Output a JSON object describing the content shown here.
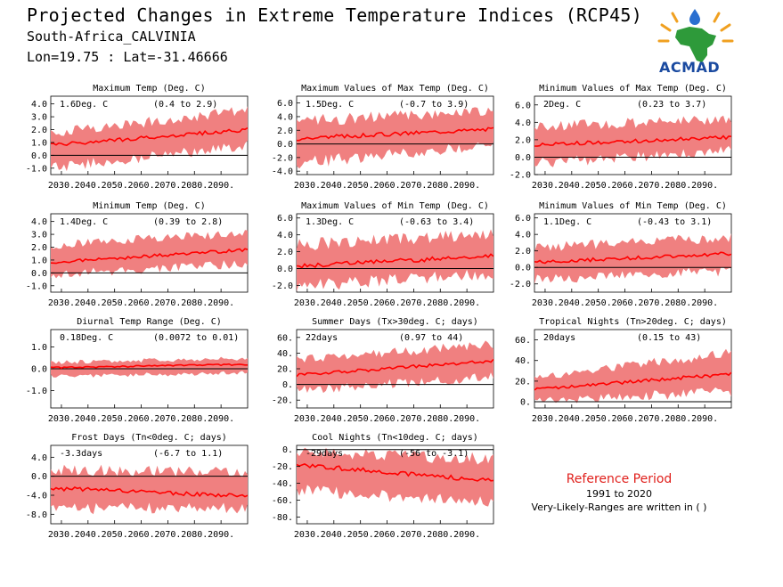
{
  "header": {
    "title": "Projected Changes in Extreme Temperature Indices (RCP45)",
    "location": "South-Africa_CALVINIA",
    "coords": "Lon=19.75 : Lat=-31.46666"
  },
  "logo": {
    "text": "ACMAD"
  },
  "legend": {
    "title": "Reference Period",
    "years": "1991 to 2020",
    "note": "Very-Likely-Ranges are written in ( )"
  },
  "colors": {
    "band": "#f08080",
    "line": "#ff0000",
    "zero": "#000000",
    "title_red": "#e0201c"
  },
  "chart_data": [
    {
      "type": "area",
      "title": "Maximum Temp (Deg. C)",
      "mean_text": "1.6Deg. C",
      "range_text": "(0.4 to 2.9)",
      "x_ticks": [
        "2030.",
        "2040.",
        "2050.",
        "2060.",
        "2070.",
        "2080.",
        "2090."
      ],
      "y_ticks": [
        "4.0",
        "3.0",
        "2.0",
        "1.0",
        "0.0",
        "-1.0"
      ],
      "ylim": [
        -1.5,
        4.6
      ],
      "series": [
        {
          "start": 0.8,
          "end": 2.0,
          "low_start": -0.8,
          "low_end": 0.9,
          "high_start": 1.6,
          "high_end": 3.3
        }
      ]
    },
    {
      "type": "area",
      "title": "Maximum Values of Max Temp (Deg. C)",
      "mean_text": "1.5Deg. C",
      "range_text": "(-0.7 to 3.9)",
      "x_ticks": [
        "2030.",
        "2040.",
        "2050.",
        "2060.",
        "2070.",
        "2080.",
        "2090."
      ],
      "y_ticks": [
        "6.0",
        "4.0",
        "2.0",
        "0.0",
        "-2.0",
        "-4.0"
      ],
      "ylim": [
        -4.5,
        7.0
      ],
      "series": [
        {
          "start": 0.8,
          "end": 2.2,
          "low_start": -2.5,
          "low_end": 0.2,
          "high_start": 3.0,
          "high_end": 4.5
        }
      ]
    },
    {
      "type": "area",
      "title": "Minimum Values of Max Temp (Deg. C)",
      "mean_text": "2Deg. C",
      "range_text": "(0.23 to 3.7)",
      "x_ticks": [
        "2030.",
        "2040.",
        "2050.",
        "2060.",
        "2070.",
        "2080.",
        "2090."
      ],
      "y_ticks": [
        "6.0",
        "4.0",
        "2.0",
        "0.0",
        "-2.0"
      ],
      "ylim": [
        -2.0,
        7.0
      ],
      "series": [
        {
          "start": 1.4,
          "end": 2.3,
          "low_start": -0.5,
          "low_end": 1.0,
          "high_start": 3.2,
          "high_end": 4.2
        }
      ]
    },
    {
      "type": "area",
      "title": "Minimum Temp (Deg. C)",
      "mean_text": "1.4Deg. C",
      "range_text": "(0.39 to 2.8)",
      "x_ticks": [
        "2030.",
        "2040.",
        "2050.",
        "2060.",
        "2070.",
        "2080.",
        "2090."
      ],
      "y_ticks": [
        "4.0",
        "3.0",
        "2.0",
        "1.0",
        "0.0",
        "-1.0"
      ],
      "ylim": [
        -1.5,
        4.6
      ],
      "series": [
        {
          "start": 0.8,
          "end": 1.8,
          "low_start": 0.0,
          "low_end": 0.9,
          "high_start": 2.0,
          "high_end": 3.0
        }
      ]
    },
    {
      "type": "area",
      "title": "Maximum Values of Min Temp (Deg. C)",
      "mean_text": "1.3Deg. C",
      "range_text": "(-0.63 to 3.4)",
      "x_ticks": [
        "2030.",
        "2040.",
        "2050.",
        "2060.",
        "2070.",
        "2080.",
        "2090."
      ],
      "y_ticks": [
        "6.0",
        "4.0",
        "2.0",
        "0.0",
        "-2.0"
      ],
      "ylim": [
        -2.8,
        6.5
      ],
      "series": [
        {
          "start": 0.3,
          "end": 1.5,
          "low_start": -1.8,
          "low_end": -0.3,
          "high_start": 2.5,
          "high_end": 3.8
        }
      ]
    },
    {
      "type": "area",
      "title": "Minimum Values of Min Temp (Deg. C)",
      "mean_text": "1.1Deg. C",
      "range_text": "(-0.43 to 3.1)",
      "x_ticks": [
        "2030.",
        "2040.",
        "2050.",
        "2060.",
        "2070.",
        "2080.",
        "2090."
      ],
      "y_ticks": [
        "6.0",
        "4.0",
        "2.0",
        "0.0",
        "-2.0"
      ],
      "ylim": [
        -3.0,
        6.5
      ],
      "series": [
        {
          "start": 0.6,
          "end": 1.7,
          "low_start": -1.2,
          "low_end": -0.2,
          "high_start": 2.2,
          "high_end": 3.4
        }
      ]
    },
    {
      "type": "area",
      "title": "Diurnal Temp Range (Deg. C)",
      "mean_text": "0.18Deg. C",
      "range_text": "(0.0072 to 0.01)",
      "x_ticks": [
        "2030.",
        "2040.",
        "2050.",
        "2060.",
        "2070.",
        "2080.",
        "2090."
      ],
      "y_ticks": [
        "1.0",
        "0.0",
        "-1.0"
      ],
      "ylim": [
        -1.8,
        1.8
      ],
      "series": [
        {
          "start": 0.05,
          "end": 0.2,
          "low_start": -0.3,
          "low_end": -0.15,
          "high_start": 0.25,
          "high_end": 0.45
        }
      ]
    },
    {
      "type": "area",
      "title": "Summer Days (Tx>30deg. C; days)",
      "mean_text": "22days",
      "range_text": "(0.97 to 44)",
      "x_ticks": [
        "2030.",
        "2040.",
        "2050.",
        "2060.",
        "2070.",
        "2080.",
        "2090."
      ],
      "y_ticks": [
        "60.",
        "40.",
        "20.",
        "0.",
        "-20."
      ],
      "ylim": [
        -30,
        70
      ],
      "series": [
        {
          "start": 12,
          "end": 30,
          "low_start": -5,
          "low_end": 12,
          "high_start": 30,
          "high_end": 48
        }
      ]
    },
    {
      "type": "area",
      "title": "Tropical Nights (Tn>20deg. C; days)",
      "mean_text": "20days",
      "range_text": "(0.15 to 43)",
      "x_ticks": [
        "2030.",
        "2040.",
        "2050.",
        "2060.",
        "2070.",
        "2080.",
        "2090."
      ],
      "y_ticks": [
        "60.",
        "40.",
        "20.",
        "0."
      ],
      "ylim": [
        -6,
        70
      ],
      "series": [
        {
          "start": 12,
          "end": 27,
          "low_start": 2,
          "low_end": 12,
          "high_start": 22,
          "high_end": 45
        }
      ]
    },
    {
      "type": "area",
      "title": "Frost Days (Tn<0deg. C; days)",
      "mean_text": "-3.3days",
      "range_text": "(-6.7 to 1.1)",
      "x_ticks": [
        "2030.",
        "2040.",
        "2050.",
        "2060.",
        "2070.",
        "2080.",
        "2090."
      ],
      "y_ticks": [
        "4.0",
        "0.0",
        "-4.0",
        "-8.0"
      ],
      "ylim": [
        -10,
        6.5
      ],
      "series": [
        {
          "start": -2.5,
          "end": -4.2,
          "low_start": -6.3,
          "low_end": -6.3,
          "high_start": 0.9,
          "high_end": 0.4
        }
      ]
    },
    {
      "type": "area",
      "title": "Cool Nights (Tn<10deg. C; days)",
      "mean_text": "-29days",
      "range_text": "(-56 to -3.1)",
      "x_ticks": [
        "2030.",
        "2040.",
        "2050.",
        "2060.",
        "2070.",
        "2080.",
        "2090."
      ],
      "y_ticks": [
        "0.",
        "-20.",
        "-40.",
        "-60.",
        "-80."
      ],
      "ylim": [
        -88,
        5
      ],
      "series": [
        {
          "start": -18,
          "end": -37,
          "low_start": -45,
          "low_end": -60,
          "high_start": -5,
          "high_end": -15
        }
      ]
    }
  ]
}
